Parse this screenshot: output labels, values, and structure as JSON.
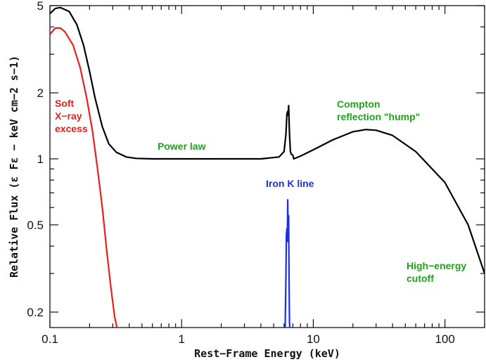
{
  "chart_data": {
    "type": "line",
    "xlabel": "Rest−Frame Energy (keV)",
    "ylabel": "Relative Flux (ε Fε − keV cm−2 s−1)",
    "xscale": "log",
    "yscale": "log",
    "xlim": [
      0.1,
      200
    ],
    "ylim": [
      0.17,
      5
    ],
    "x_ticks": [
      {
        "value": 0.1,
        "label": "0.1"
      },
      {
        "value": 1,
        "label": "1"
      },
      {
        "value": 10,
        "label": "10"
      },
      {
        "value": 100,
        "label": "100"
      }
    ],
    "y_ticks": [
      {
        "value": 0.2,
        "label": "0.2"
      },
      {
        "value": 0.5,
        "label": "0.5"
      },
      {
        "value": 1,
        "label": "1"
      },
      {
        "value": 2,
        "label": "2"
      },
      {
        "value": 5,
        "label": "5"
      }
    ],
    "grid": false,
    "series": [
      {
        "id": "total",
        "color": "#000000",
        "x": [
          0.1,
          0.11,
          0.12,
          0.14,
          0.16,
          0.18,
          0.2,
          0.22,
          0.25,
          0.28,
          0.32,
          0.38,
          0.45,
          0.6,
          1,
          2,
          4,
          5.5,
          6.0,
          6.2,
          6.3,
          6.4,
          6.45,
          6.5,
          6.55,
          6.6,
          6.7,
          6.8,
          7.0,
          7.1,
          8,
          10,
          14,
          20,
          25,
          30,
          40,
          60,
          100,
          150,
          200
        ],
        "values": [
          4.6,
          4.85,
          4.9,
          4.7,
          4.1,
          3.3,
          2.5,
          1.9,
          1.4,
          1.17,
          1.07,
          1.02,
          1.005,
          1.0,
          1.0,
          1.0,
          1.0,
          1.02,
          1.08,
          1.3,
          1.6,
          1.65,
          1.58,
          1.75,
          1.5,
          1.3,
          1.08,
          1.05,
          1.04,
          1.0,
          1.03,
          1.1,
          1.22,
          1.33,
          1.36,
          1.35,
          1.28,
          1.08,
          0.78,
          0.5,
          0.3
        ]
      },
      {
        "id": "soft-excess",
        "color": "#e8201c",
        "x": [
          0.1,
          0.11,
          0.12,
          0.13,
          0.15,
          0.17,
          0.19,
          0.21,
          0.23,
          0.25,
          0.27,
          0.29,
          0.31,
          0.33
        ],
        "values": [
          3.7,
          3.95,
          3.95,
          3.8,
          3.3,
          2.6,
          1.9,
          1.35,
          0.9,
          0.6,
          0.38,
          0.26,
          0.19,
          0.16
        ]
      },
      {
        "id": "iron-line",
        "color": "#1c30e0",
        "x": [
          6.1,
          6.2,
          6.25,
          6.3,
          6.35,
          6.38,
          6.4,
          6.43,
          6.45,
          6.48,
          6.5,
          6.52,
          6.55,
          6.6,
          6.7
        ],
        "values": [
          0.15,
          0.3,
          0.45,
          0.48,
          0.42,
          0.55,
          0.65,
          0.5,
          0.44,
          0.55,
          0.55,
          0.4,
          0.28,
          0.18,
          0.15
        ]
      }
    ],
    "annotations": [
      {
        "id": "soft",
        "lines": [
          "Soft",
          "X−ray",
          "excess"
        ],
        "color": "#e8201c"
      },
      {
        "id": "powerlaw",
        "lines": [
          "Power law"
        ],
        "color": "#22a022"
      },
      {
        "id": "iron",
        "lines": [
          "Iron K line"
        ],
        "color": "#1c30e0"
      },
      {
        "id": "compton",
        "lines": [
          "Compton",
          "reflection \"hump\""
        ],
        "color": "#22a022"
      },
      {
        "id": "cutoff",
        "lines": [
          "High−energy",
          "cutoff"
        ],
        "color": "#22a022"
      }
    ]
  }
}
